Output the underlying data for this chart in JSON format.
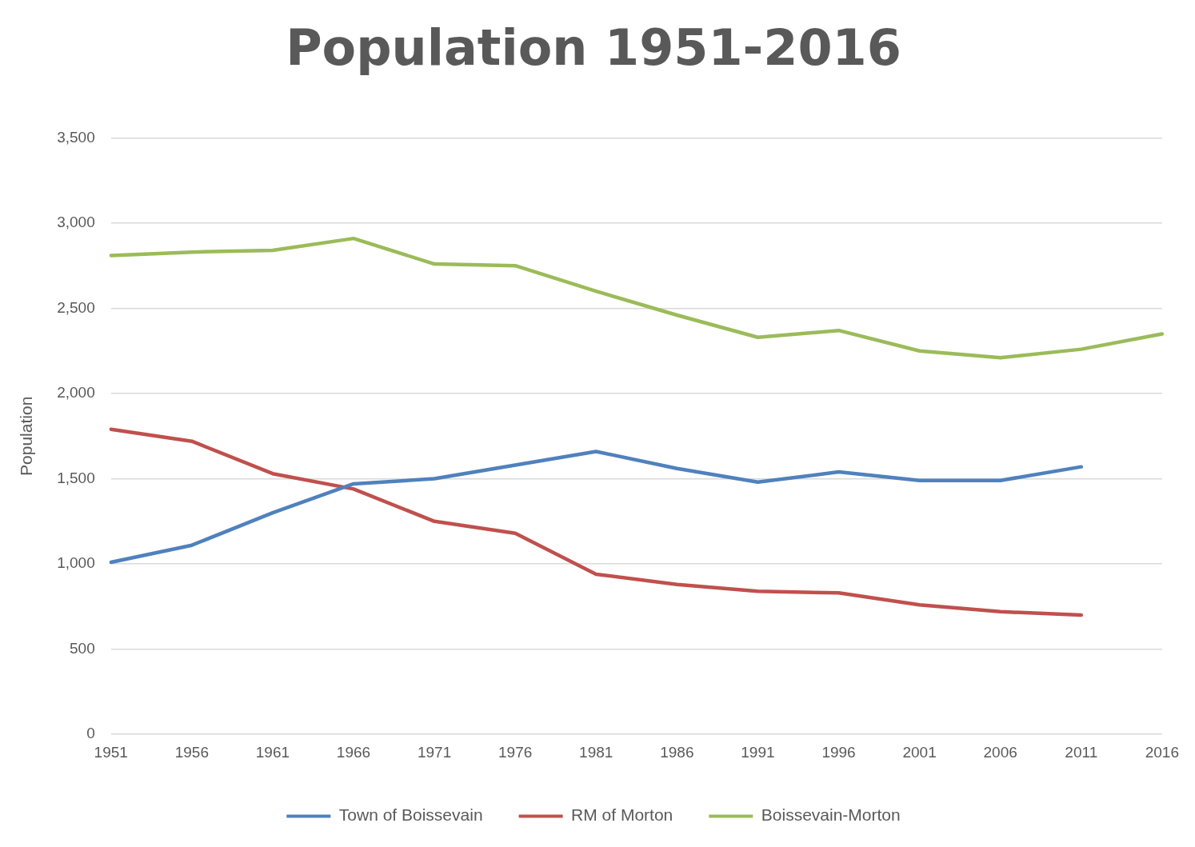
{
  "chart_data": {
    "type": "line",
    "title": "Population 1951-2016",
    "ylabel": "Population",
    "categories": [
      "1951",
      "1956",
      "1961",
      "1966",
      "1971",
      "1976",
      "1981",
      "1986",
      "1991",
      "1996",
      "2001",
      "2006",
      "2011",
      "2016"
    ],
    "series": [
      {
        "name": "Town of Boissevain",
        "color": "#4f81bd",
        "values": [
          1010,
          1110,
          1300,
          1470,
          1500,
          1580,
          1660,
          1560,
          1480,
          1540,
          1490,
          1490,
          1570,
          null
        ]
      },
      {
        "name": "RM of Morton",
        "color": "#c0504d",
        "values": [
          1790,
          1720,
          1530,
          1440,
          1250,
          1180,
          940,
          880,
          840,
          830,
          760,
          720,
          700,
          null
        ]
      },
      {
        "name": "Boissevain-Morton",
        "color": "#9bbb59",
        "values": [
          2810,
          2830,
          2840,
          2910,
          2760,
          2750,
          2600,
          2460,
          2330,
          2370,
          2250,
          2210,
          2260,
          2350
        ]
      }
    ],
    "ylim": [
      0,
      3500
    ],
    "yticks": [
      {
        "value": 0,
        "label": "0"
      },
      {
        "value": 500,
        "label": "500"
      },
      {
        "value": 1000,
        "label": "1,000"
      },
      {
        "value": 1500,
        "label": "1,500"
      },
      {
        "value": 2000,
        "label": "2,000"
      },
      {
        "value": 2500,
        "label": "2,500"
      },
      {
        "value": 3000,
        "label": "3,000"
      },
      {
        "value": 3500,
        "label": "3,500"
      }
    ],
    "grid": "y",
    "legend": "bottom",
    "marker": "none",
    "line_style": "solid"
  }
}
